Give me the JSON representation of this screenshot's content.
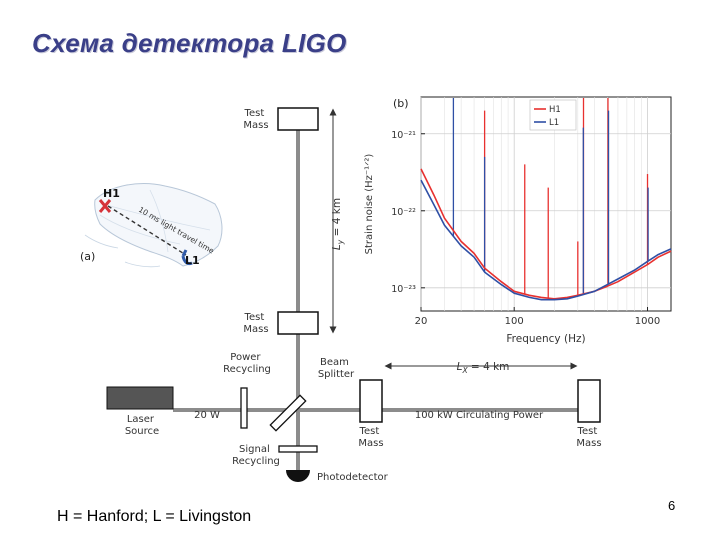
{
  "slide": {
    "title": "Схема детектора LIGO",
    "footnote": "H = Hanford; L = Livingston",
    "page_number": "6"
  },
  "diagram": {
    "panel_a": {
      "tag": "(a)",
      "site1": "H1",
      "site2": "L1",
      "travel_label": "10 ms light travel time"
    },
    "interferometer": {
      "test_mass_top": [
        "Test",
        "Mass"
      ],
      "test_mass_mid": [
        "Test",
        "Mass"
      ],
      "arm_y": "L",
      "arm_y_sub": "y",
      "arm_y_len": " = 4 km",
      "power_recycling": [
        "Power",
        "Recycling"
      ],
      "beam_splitter": [
        "Beam",
        "Splitter"
      ],
      "laser": [
        "Laser",
        "Source"
      ],
      "laser_power": "20 W",
      "test_mass_x_near": [
        "Test",
        "Mass"
      ],
      "test_mass_x_far": [
        "Test",
        "Mass"
      ],
      "arm_x": "L",
      "arm_x_sub": "X",
      "arm_x_len": " = 4 km",
      "circulating": "100 kW Circulating Power",
      "signal_recycling": [
        "Signal",
        "Recycling"
      ],
      "photodetector": "Photodetector"
    }
  },
  "chart_data": {
    "type": "line",
    "tag": "(b)",
    "title": "",
    "xlabel": "Frequency (Hz)",
    "ylabel": "Strain noise (Hz⁻¹ᐟ²)",
    "xscale": "log",
    "yscale": "log",
    "xlim": [
      20,
      1500
    ],
    "ylim": [
      5e-24,
      3e-21
    ],
    "x_ticks": [
      20,
      100,
      1000
    ],
    "x_tick_labels": [
      "20",
      "100",
      "1000"
    ],
    "y_ticks": [
      1e-23,
      1e-22,
      1e-21
    ],
    "y_tick_labels": [
      "10⁻²³",
      "10⁻²²",
      "10⁻²¹"
    ],
    "legend_position": "top-right",
    "grid": true,
    "series": [
      {
        "name": "H1",
        "color": "#e8312f",
        "x": [
          20,
          25,
          30,
          40,
          50,
          60,
          80,
          100,
          130,
          160,
          200,
          250,
          300,
          400,
          500,
          600,
          800,
          1000,
          1200,
          1500
        ],
        "y": [
          3.5e-22,
          1.6e-22,
          8e-23,
          4e-23,
          2.8e-23,
          1.8e-23,
          1.2e-23,
          9e-24,
          8e-24,
          7.5e-24,
          7.2e-24,
          7.5e-24,
          8e-24,
          9e-24,
          1.05e-23,
          1.2e-23,
          1.6e-23,
          2e-23,
          2.5e-23,
          3e-23
        ]
      },
      {
        "name": "L1",
        "color": "#2f4fa5",
        "x": [
          20,
          25,
          30,
          40,
          50,
          60,
          80,
          100,
          130,
          160,
          200,
          250,
          300,
          400,
          500,
          600,
          800,
          1000,
          1200,
          1500
        ],
        "y": [
          2.5e-22,
          1.2e-22,
          6.5e-23,
          3.5e-23,
          2.5e-23,
          1.6e-23,
          1.1e-23,
          8.5e-24,
          7.5e-24,
          7e-24,
          7e-24,
          7.2e-24,
          7.8e-24,
          9e-24,
          1.1e-23,
          1.3e-23,
          1.7e-23,
          2.2e-23,
          2.7e-23,
          3.2e-23
        ]
      }
    ],
    "line_spikes": [
      {
        "series": "H1",
        "x": 60,
        "y": 2e-21
      },
      {
        "series": "H1",
        "x": 120,
        "y": 4e-22
      },
      {
        "series": "H1",
        "x": 180,
        "y": 2e-22
      },
      {
        "series": "H1",
        "x": 300,
        "y": 4e-23
      },
      {
        "series": "H1",
        "x": 331,
        "y": 3e-21
      },
      {
        "series": "H1",
        "x": 505,
        "y": 3e-21
      },
      {
        "series": "H1",
        "x": 1000,
        "y": 3e-22
      },
      {
        "series": "L1",
        "x": 35,
        "y": 3e-21
      },
      {
        "series": "L1",
        "x": 60,
        "y": 5e-22
      },
      {
        "series": "L1",
        "x": 330,
        "y": 1.2e-21
      },
      {
        "series": "L1",
        "x": 510,
        "y": 2e-21
      },
      {
        "series": "L1",
        "x": 1010,
        "y": 2e-22
      }
    ]
  }
}
